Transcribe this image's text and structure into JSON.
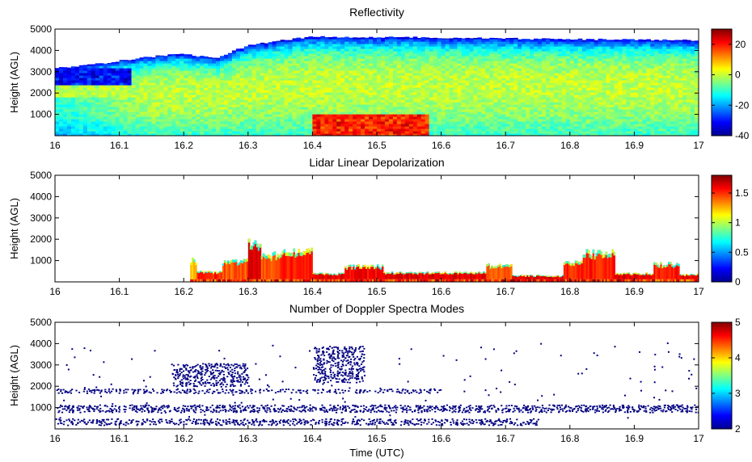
{
  "figure": {
    "xlabel": "Time (UTC)"
  },
  "chart_data": [
    {
      "type": "heatmap",
      "title": "Reflectivity",
      "ylabel": "Height (AGL)",
      "xlim": [
        16,
        17
      ],
      "ylim": [
        0,
        5000
      ],
      "xticks": [
        "16",
        "16.1",
        "16.2",
        "16.3",
        "16.4",
        "16.5",
        "16.6",
        "16.7",
        "16.8",
        "16.9",
        "17"
      ],
      "yticks": [
        "1000",
        "2000",
        "3000",
        "4000",
        "5000"
      ],
      "colorbar": {
        "range": [
          -40,
          30
        ],
        "ticks": [
          "-40",
          "-20",
          "0",
          "20"
        ],
        "colormap": "jet"
      },
      "cloud_top": [
        [
          16.0,
          3150
        ],
        [
          16.05,
          3300
        ],
        [
          16.1,
          3500
        ],
        [
          16.15,
          3700
        ],
        [
          16.2,
          3850
        ],
        [
          16.25,
          3600
        ],
        [
          16.3,
          4250
        ],
        [
          16.35,
          4450
        ],
        [
          16.4,
          4650
        ],
        [
          16.5,
          4620
        ],
        [
          16.6,
          4600
        ],
        [
          16.7,
          4560
        ],
        [
          16.8,
          4520
        ],
        [
          16.9,
          4500
        ],
        [
          17.0,
          4480
        ]
      ],
      "features": [
        {
          "label": "low reflectivity region",
          "x": [
            16.0,
            16.12
          ],
          "y": [
            2300,
            3100
          ],
          "value": -35
        },
        {
          "label": "high reflectivity near surface",
          "x": [
            16.4,
            16.58
          ],
          "y": [
            0,
            1000
          ],
          "value": 15
        }
      ]
    },
    {
      "type": "heatmap",
      "title": "Lidar Linear Depolarization",
      "ylabel": "Height (AGL)",
      "xlim": [
        16,
        17
      ],
      "ylim": [
        0,
        5000
      ],
      "xticks": [
        "16",
        "16.1",
        "16.2",
        "16.3",
        "16.4",
        "16.5",
        "16.6",
        "16.7",
        "16.8",
        "16.9",
        "17"
      ],
      "yticks": [
        "1000",
        "2000",
        "3000",
        "4000",
        "5000"
      ],
      "colorbar": {
        "range": [
          0,
          1.8
        ],
        "ticks": [
          "0",
          "0.5",
          "1",
          "1.5"
        ],
        "colormap": "jet"
      },
      "signal_extent": [
        16.21,
        17.0
      ],
      "blocks": [
        {
          "x": [
            16.21,
            16.22
          ],
          "top": 1050,
          "value": 1.3
        },
        {
          "x": [
            16.22,
            16.26
          ],
          "top": 480,
          "value": 1.6
        },
        {
          "x": [
            16.26,
            16.3
          ],
          "top": 1000,
          "value": 1.5
        },
        {
          "x": [
            16.3,
            16.32
          ],
          "top": 1900,
          "value": 1.7
        },
        {
          "x": [
            16.32,
            16.35
          ],
          "top": 1300,
          "value": 1.5
        },
        {
          "x": [
            16.35,
            16.4
          ],
          "top": 1500,
          "value": 1.6
        },
        {
          "x": [
            16.4,
            16.45
          ],
          "top": 400,
          "value": 1.7
        },
        {
          "x": [
            16.45,
            16.51
          ],
          "top": 750,
          "value": 1.65
        },
        {
          "x": [
            16.51,
            16.67
          ],
          "top": 450,
          "value": 1.7
        },
        {
          "x": [
            16.67,
            16.71
          ],
          "top": 800,
          "value": 1.5
        },
        {
          "x": [
            16.71,
            16.79
          ],
          "top": 300,
          "value": 1.7
        },
        {
          "x": [
            16.79,
            16.82
          ],
          "top": 950,
          "value": 1.6
        },
        {
          "x": [
            16.82,
            16.87
          ],
          "top": 1400,
          "value": 1.6
        },
        {
          "x": [
            16.87,
            16.93
          ],
          "top": 400,
          "value": 1.7
        },
        {
          "x": [
            16.93,
            16.97
          ],
          "top": 850,
          "value": 1.6
        },
        {
          "x": [
            16.97,
            17.0
          ],
          "top": 350,
          "value": 1.7
        }
      ]
    },
    {
      "type": "heatmap",
      "title": "Number of Doppler Spectra Modes",
      "ylabel": "Height (AGL)",
      "xlim": [
        16,
        17
      ],
      "ylim": [
        0,
        5000
      ],
      "xticks": [
        "16",
        "16.1",
        "16.2",
        "16.3",
        "16.4",
        "16.5",
        "16.6",
        "16.7",
        "16.8",
        "16.9",
        "17"
      ],
      "yticks": [
        "1000",
        "2000",
        "3000",
        "4000",
        "5000"
      ],
      "colorbar": {
        "range": [
          2,
          5
        ],
        "ticks": [
          "2",
          "3",
          "4",
          "5"
        ],
        "colormap": "jet"
      },
      "bands": [
        {
          "x": [
            16.0,
            16.6
          ],
          "y": [
            1700,
            1900
          ],
          "value": 2
        },
        {
          "x": [
            16.0,
            17.0
          ],
          "y": [
            800,
            1150
          ],
          "value": 2
        },
        {
          "x": [
            16.0,
            16.75
          ],
          "y": [
            200,
            500
          ],
          "value": 2
        },
        {
          "x": [
            16.18,
            16.3
          ],
          "y": [
            2000,
            3100
          ],
          "value": 2
        },
        {
          "x": [
            16.4,
            16.48
          ],
          "y": [
            2200,
            3900
          ],
          "value": 2
        }
      ]
    }
  ]
}
